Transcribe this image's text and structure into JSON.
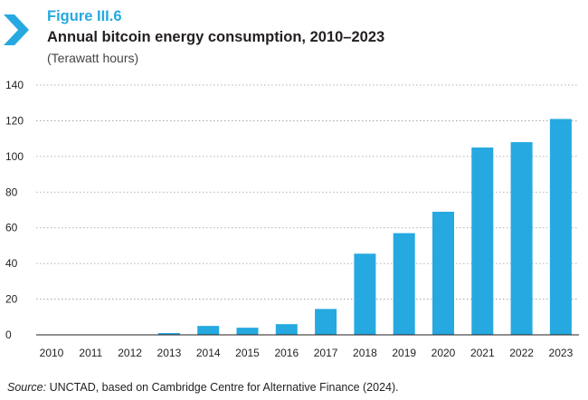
{
  "header": {
    "figure_label": "Figure III.6",
    "title": "Annual bitcoin energy consumption, 2010–2023",
    "subtitle": "(Terawatt hours)"
  },
  "footer": {
    "source_prefix": "Source:",
    "source_text": " UNCTAD, based on Cambridge Centre for Alternative Finance (2024)."
  },
  "colors": {
    "bar": "#26a9e0",
    "accent": "#26a9e0",
    "grid": "#9a9a9a"
  },
  "chart_data": {
    "type": "bar",
    "title": "Annual bitcoin energy consumption, 2010–2023",
    "ylabel": "(Terawatt hours)",
    "xlabel": "",
    "categories": [
      "2010",
      "2011",
      "2012",
      "2013",
      "2014",
      "2015",
      "2016",
      "2017",
      "2018",
      "2019",
      "2020",
      "2021",
      "2022",
      "2023"
    ],
    "values": [
      0,
      0,
      0,
      1,
      5,
      4,
      6,
      14.5,
      45.5,
      57,
      69,
      105,
      108,
      121
    ],
    "ylim": [
      0,
      140
    ],
    "yticks": [
      "0",
      "20",
      "40",
      "60",
      "80",
      "100",
      "120",
      "140"
    ],
    "grid": true,
    "legend": "none"
  }
}
